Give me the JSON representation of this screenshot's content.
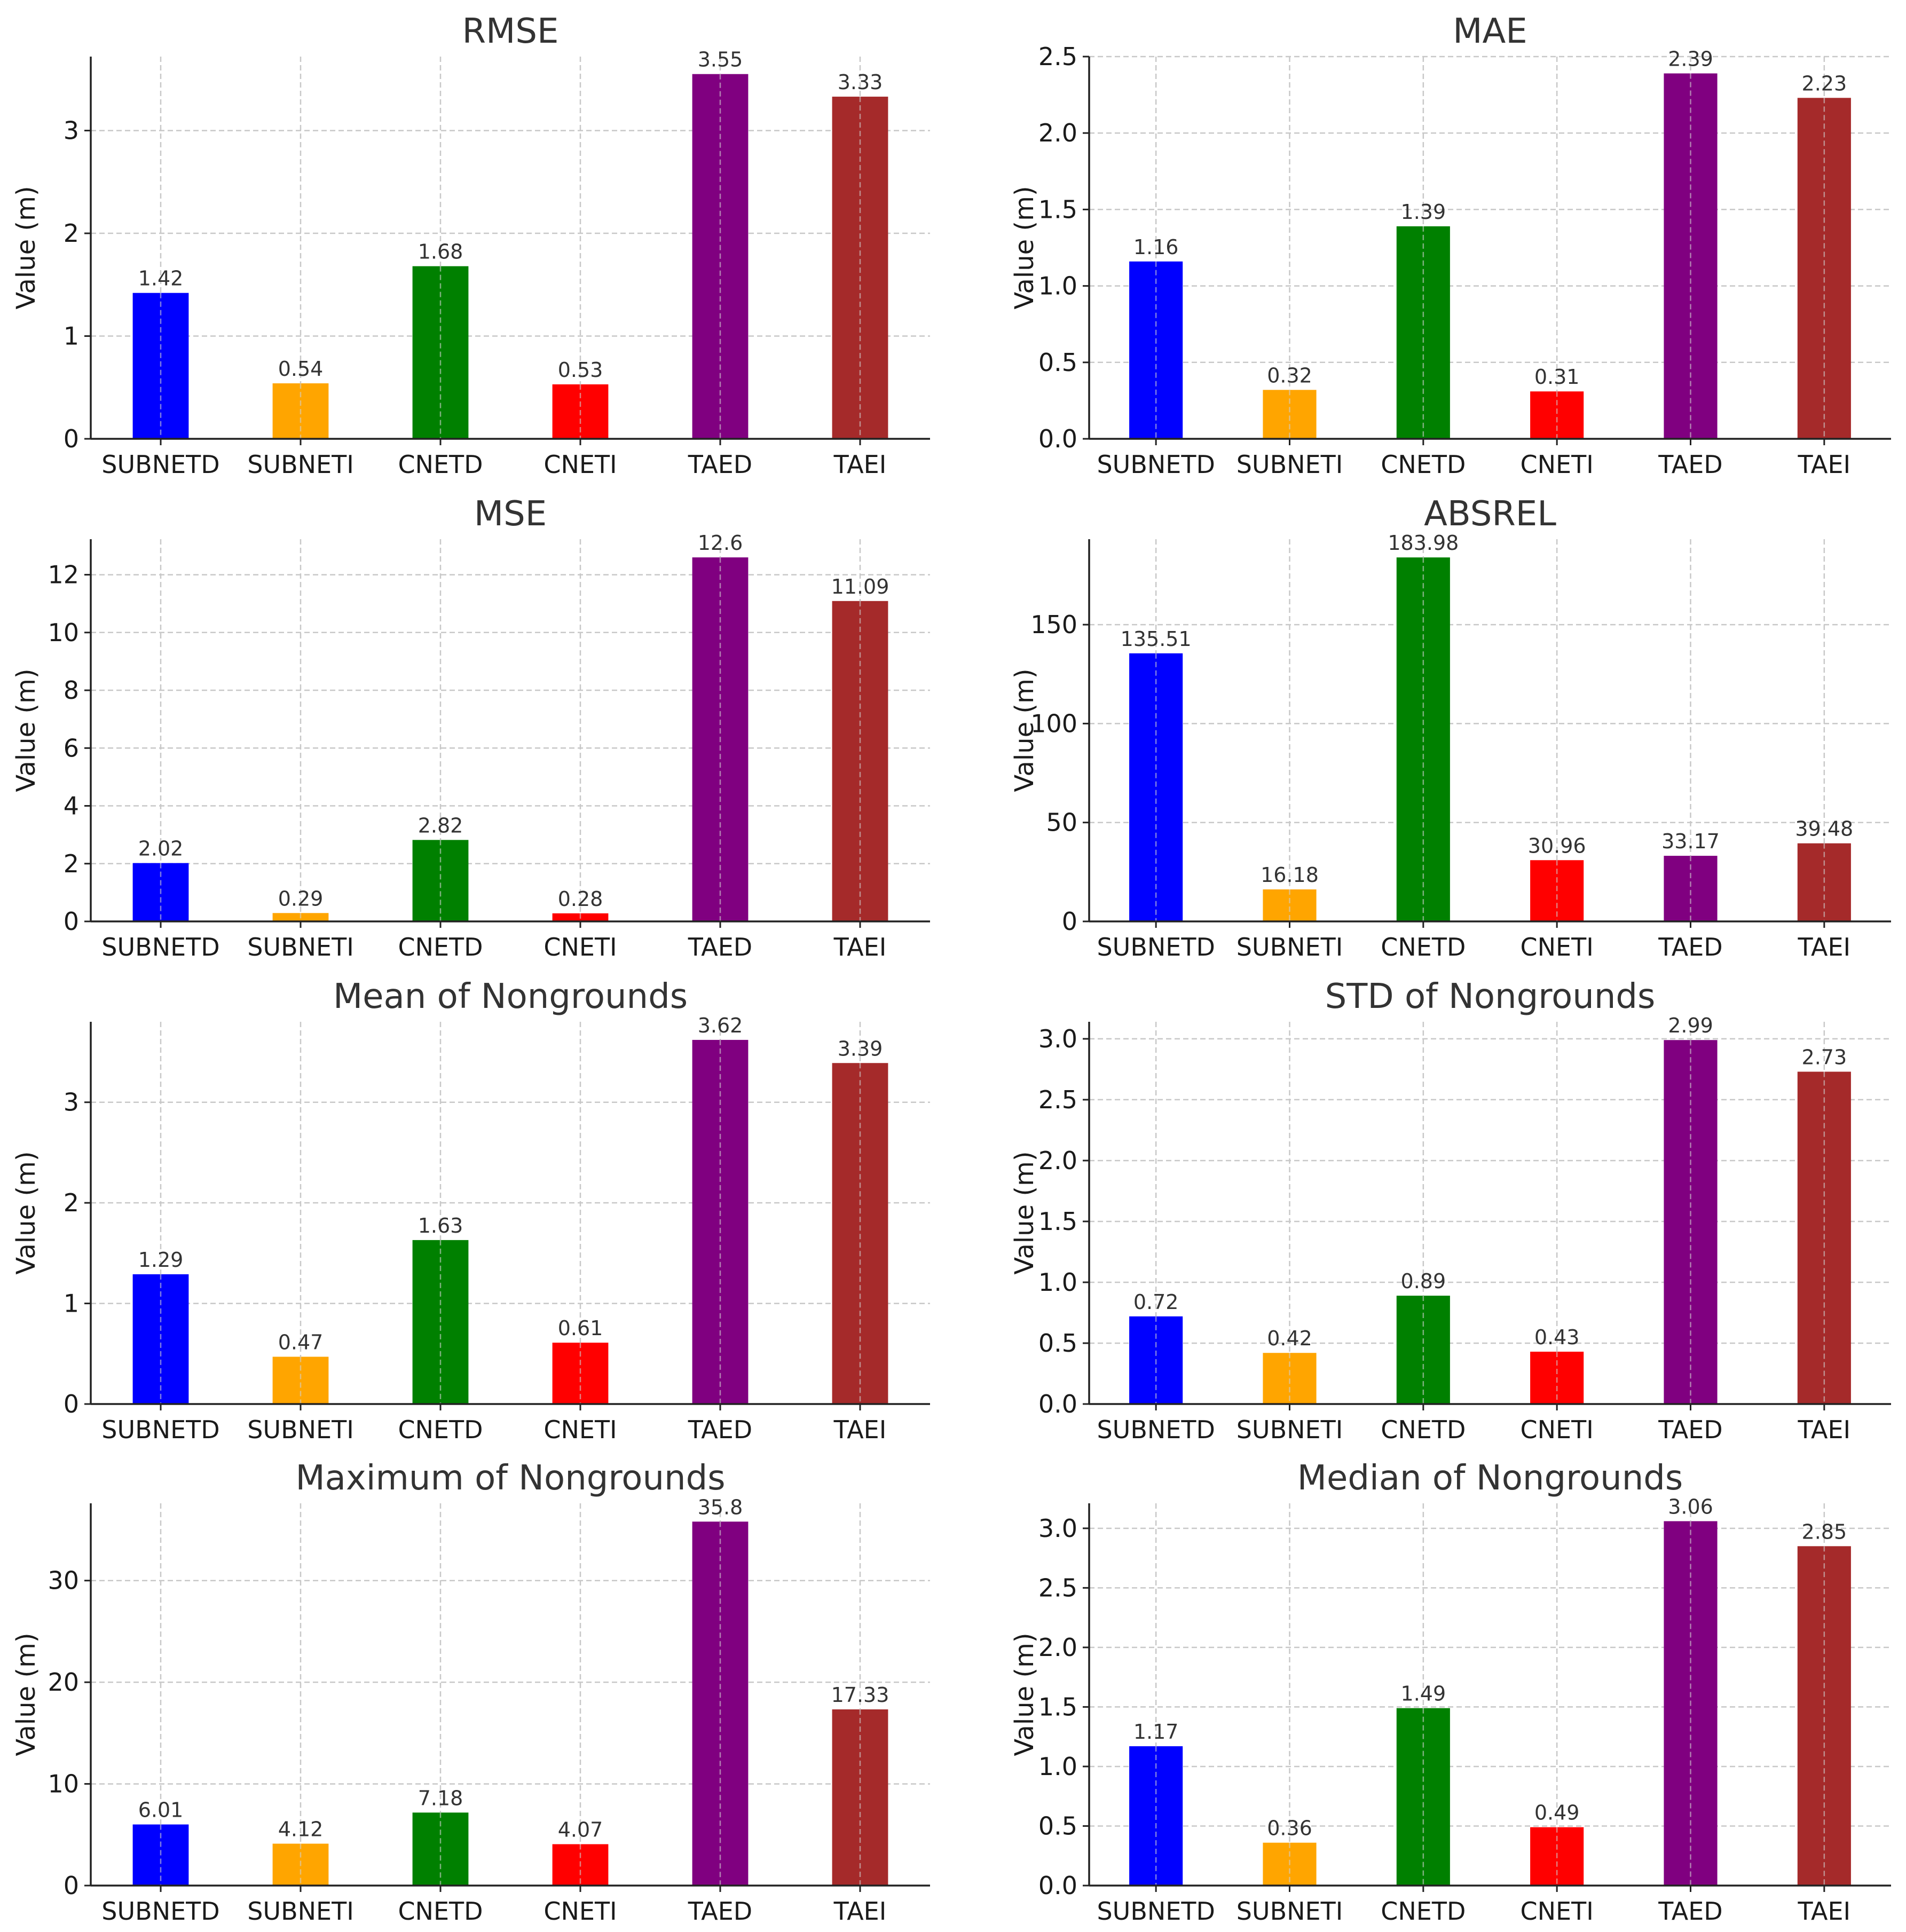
{
  "chart_data": [
    {
      "type": "bar",
      "title": "RMSE",
      "ylabel": "Value (m)",
      "categories": [
        "SUBNETD",
        "SUBNETI",
        "CNETD",
        "CNETI",
        "TAED",
        "TAEI"
      ],
      "values": [
        1.42,
        0.54,
        1.68,
        0.53,
        3.55,
        3.33
      ],
      "value_labels": [
        "1.42",
        "0.54",
        "1.68",
        "0.53",
        "3.55",
        "3.33"
      ],
      "ylim": [
        0,
        3.72
      ],
      "yticks": [
        0,
        1,
        2,
        3
      ],
      "ytick_labels": [
        "0",
        "1",
        "2",
        "3"
      ],
      "colors": [
        "#0000ff",
        "#ffa500",
        "#008000",
        "#ff0000",
        "#800080",
        "#a52a2a"
      ],
      "grid": true
    },
    {
      "type": "bar",
      "title": "MAE",
      "ylabel": "Value (m)",
      "categories": [
        "SUBNETD",
        "SUBNETI",
        "CNETD",
        "CNETI",
        "TAED",
        "TAEI"
      ],
      "values": [
        1.16,
        0.32,
        1.39,
        0.31,
        2.39,
        2.23
      ],
      "value_labels": [
        "1.16",
        "0.32",
        "1.39",
        "0.31",
        "2.39",
        "2.23"
      ],
      "ylim": [
        0,
        2.5
      ],
      "yticks": [
        0,
        0.5,
        1.0,
        1.5,
        2.0,
        2.5
      ],
      "ytick_labels": [
        "0.0",
        "0.5",
        "1.0",
        "1.5",
        "2.0",
        "2.5"
      ],
      "colors": [
        "#0000ff",
        "#ffa500",
        "#008000",
        "#ff0000",
        "#800080",
        "#a52a2a"
      ],
      "grid": true
    },
    {
      "type": "bar",
      "title": "MSE",
      "ylabel": "Value (m)",
      "categories": [
        "SUBNETD",
        "SUBNETI",
        "CNETD",
        "CNETI",
        "TAED",
        "TAEI"
      ],
      "values": [
        2.02,
        0.29,
        2.82,
        0.28,
        12.6,
        11.09
      ],
      "value_labels": [
        "2.02",
        "0.29",
        "2.82",
        "0.28",
        "12.6",
        "11.09"
      ],
      "ylim": [
        0,
        13.23
      ],
      "yticks": [
        0,
        2,
        4,
        6,
        8,
        10,
        12
      ],
      "ytick_labels": [
        "0",
        "2",
        "4",
        "6",
        "8",
        "10",
        "12"
      ],
      "colors": [
        "#0000ff",
        "#ffa500",
        "#008000",
        "#ff0000",
        "#800080",
        "#a52a2a"
      ],
      "grid": true
    },
    {
      "type": "bar",
      "title": "ABSREL",
      "ylabel": "Value (m)",
      "categories": [
        "SUBNETD",
        "SUBNETI",
        "CNETD",
        "CNETI",
        "TAED",
        "TAEI"
      ],
      "values": [
        135.51,
        16.18,
        183.98,
        30.96,
        33.17,
        39.48
      ],
      "value_labels": [
        "135.51",
        "16.18",
        "183.98",
        "30.96",
        "33.17",
        "39.48"
      ],
      "ylim": [
        0,
        193.2
      ],
      "yticks": [
        0,
        50,
        100,
        150
      ],
      "ytick_labels": [
        "0",
        "50",
        "100",
        "150"
      ],
      "colors": [
        "#0000ff",
        "#ffa500",
        "#008000",
        "#ff0000",
        "#800080",
        "#a52a2a"
      ],
      "grid": true
    },
    {
      "type": "bar",
      "title": "Mean of Nongrounds",
      "ylabel": "Value (m)",
      "categories": [
        "SUBNETD",
        "SUBNETI",
        "CNETD",
        "CNETI",
        "TAED",
        "TAEI"
      ],
      "values": [
        1.29,
        0.47,
        1.63,
        0.61,
        3.62,
        3.39
      ],
      "value_labels": [
        "1.29",
        "0.47",
        "1.63",
        "0.61",
        "3.62",
        "3.39"
      ],
      "ylim": [
        0,
        3.8
      ],
      "yticks": [
        0,
        1,
        2,
        3
      ],
      "ytick_labels": [
        "0",
        "1",
        "2",
        "3"
      ],
      "colors": [
        "#0000ff",
        "#ffa500",
        "#008000",
        "#ff0000",
        "#800080",
        "#a52a2a"
      ],
      "grid": true
    },
    {
      "type": "bar",
      "title": "STD of Nongrounds",
      "ylabel": "Value (m)",
      "categories": [
        "SUBNETD",
        "SUBNETI",
        "CNETD",
        "CNETI",
        "TAED",
        "TAEI"
      ],
      "values": [
        0.72,
        0.42,
        0.89,
        0.43,
        2.99,
        2.73
      ],
      "value_labels": [
        "0.72",
        "0.42",
        "0.89",
        "0.43",
        "2.99",
        "2.73"
      ],
      "ylim": [
        0,
        3.14
      ],
      "yticks": [
        0,
        0.5,
        1.0,
        1.5,
        2.0,
        2.5,
        3.0
      ],
      "ytick_labels": [
        "0.0",
        "0.5",
        "1.0",
        "1.5",
        "2.0",
        "2.5",
        "3.0"
      ],
      "colors": [
        "#0000ff",
        "#ffa500",
        "#008000",
        "#ff0000",
        "#800080",
        "#a52a2a"
      ],
      "grid": true
    },
    {
      "type": "bar",
      "title": "Maximum of Nongrounds",
      "ylabel": "Value (m)",
      "categories": [
        "SUBNETD",
        "SUBNETI",
        "CNETD",
        "CNETI",
        "TAED",
        "TAEI"
      ],
      "values": [
        6.01,
        4.12,
        7.18,
        4.07,
        35.8,
        17.33
      ],
      "value_labels": [
        "6.01",
        "4.12",
        "7.18",
        "4.07",
        "35.8",
        "17.33"
      ],
      "ylim": [
        0,
        37.6
      ],
      "yticks": [
        0,
        10,
        20,
        30
      ],
      "ytick_labels": [
        "0",
        "10",
        "20",
        "30"
      ],
      "colors": [
        "#0000ff",
        "#ffa500",
        "#008000",
        "#ff0000",
        "#800080",
        "#a52a2a"
      ],
      "grid": true
    },
    {
      "type": "bar",
      "title": "Median of Nongrounds",
      "ylabel": "Value (m)",
      "categories": [
        "SUBNETD",
        "SUBNETI",
        "CNETD",
        "CNETI",
        "TAED",
        "TAEI"
      ],
      "values": [
        1.17,
        0.36,
        1.49,
        0.49,
        3.06,
        2.85
      ],
      "value_labels": [
        "1.17",
        "0.36",
        "1.49",
        "0.49",
        "3.06",
        "2.85"
      ],
      "ylim": [
        0,
        3.21
      ],
      "yticks": [
        0,
        0.5,
        1.0,
        1.5,
        2.0,
        2.5,
        3.0
      ],
      "ytick_labels": [
        "0.0",
        "0.5",
        "1.0",
        "1.5",
        "2.0",
        "2.5",
        "3.0"
      ],
      "colors": [
        "#0000ff",
        "#ffa500",
        "#008000",
        "#ff0000",
        "#800080",
        "#a52a2a"
      ],
      "grid": true
    }
  ]
}
